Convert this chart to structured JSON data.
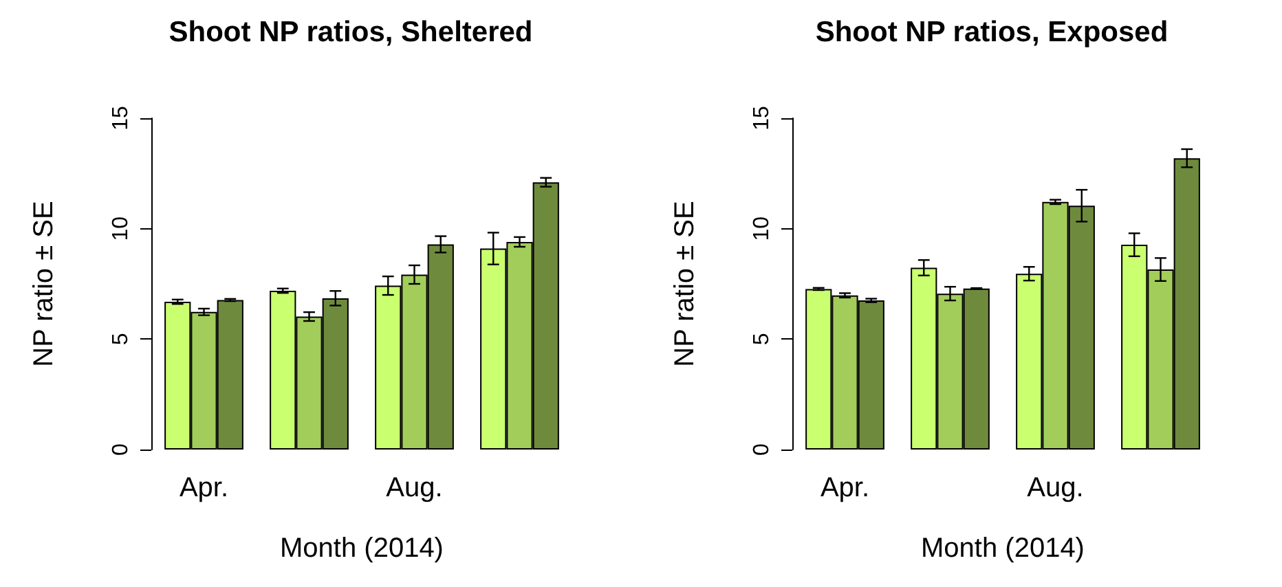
{
  "chart_data": [
    {
      "type": "bar",
      "title": "Shoot NP ratios, Sheltered",
      "xlabel": "Month (2014)",
      "ylabel": "NP ratio ± SE",
      "categories": [
        "Apr.",
        null,
        "Aug.",
        null
      ],
      "ylim": [
        0,
        15
      ],
      "yticks": [
        0,
        5,
        10,
        15
      ],
      "series": [
        {
          "color": "#caff70",
          "values": [
            6.69,
            7.19,
            7.42,
            9.1
          ],
          "errors": [
            0.1,
            0.1,
            0.42,
            0.72
          ]
        },
        {
          "color": "#a2cd5a",
          "values": [
            6.23,
            6.02,
            7.92,
            9.4
          ],
          "errors": [
            0.15,
            0.2,
            0.42,
            0.22
          ]
        },
        {
          "color": "#6e8b3d",
          "values": [
            6.77,
            6.85,
            9.29,
            12.1
          ],
          "errors": [
            0.05,
            0.33,
            0.37,
            0.2
          ]
        }
      ]
    },
    {
      "type": "bar",
      "title": "Shoot NP ratios, Exposed",
      "xlabel": "Month (2014)",
      "ylabel": "NP ratio ± SE",
      "categories": [
        "Apr.",
        null,
        "Aug.",
        null
      ],
      "ylim": [
        0,
        15
      ],
      "yticks": [
        0,
        5,
        10,
        15
      ],
      "series": [
        {
          "color": "#caff70",
          "values": [
            7.27,
            8.23,
            7.96,
            9.27
          ],
          "errors": [
            0.05,
            0.35,
            0.31,
            0.52
          ]
        },
        {
          "color": "#a2cd5a",
          "values": [
            6.98,
            7.06,
            11.21,
            8.15
          ],
          "errors": [
            0.1,
            0.31,
            0.1,
            0.52
          ]
        },
        {
          "color": "#6e8b3d",
          "values": [
            6.75,
            7.29,
            11.04,
            13.19
          ],
          "errors": [
            0.08,
            0.02,
            0.72,
            0.41
          ]
        }
      ]
    }
  ]
}
